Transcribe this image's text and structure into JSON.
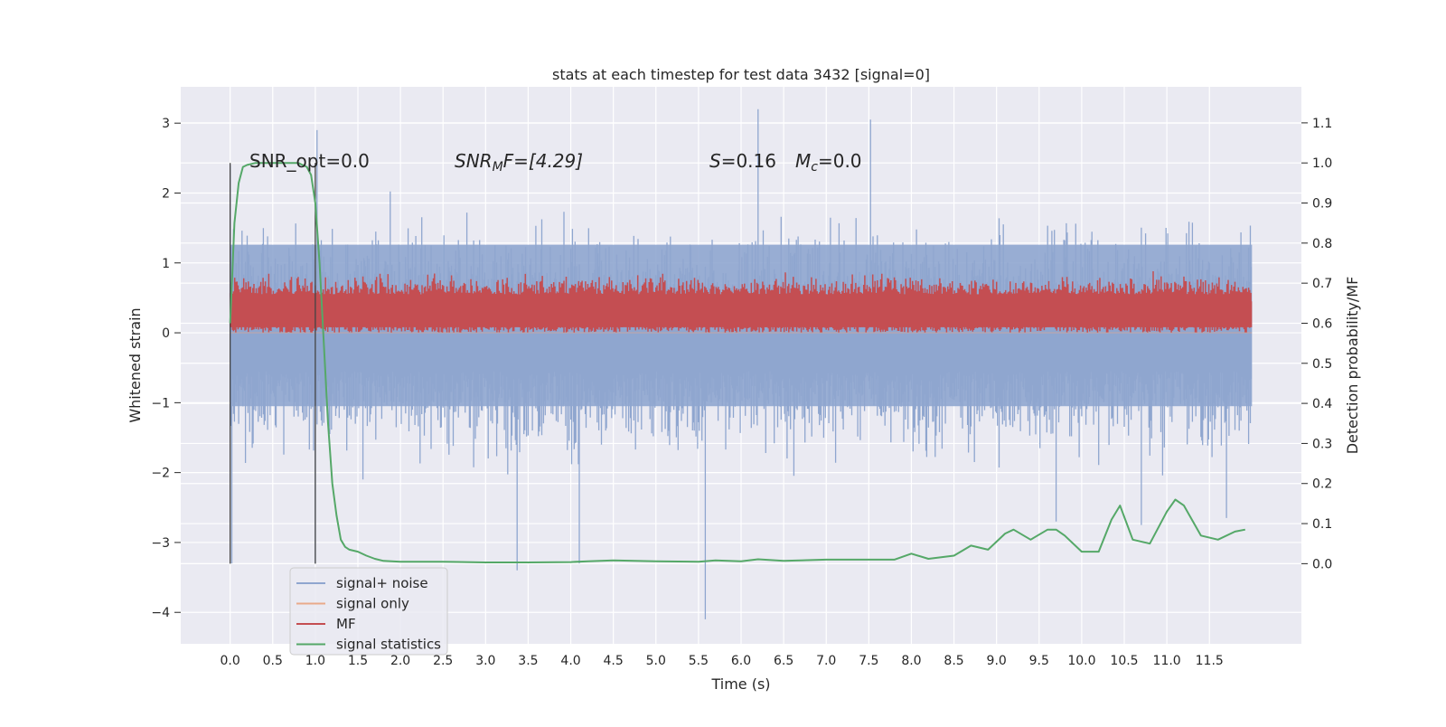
{
  "chart_data": {
    "type": "line",
    "title": "stats at each timestep for test data 3432 [signal=0]",
    "xlabel": "Time (s)",
    "ylabel": "Whitened strain",
    "y2label": "Detection probability/MF",
    "xlim": [
      -0.58,
      12.58
    ],
    "ylim": [
      -4.45,
      3.52
    ],
    "y2lim": [
      -0.2,
      1.19
    ],
    "x_ticks": [
      0.0,
      0.5,
      1.0,
      1.5,
      2.0,
      2.5,
      3.0,
      3.5,
      4.0,
      4.5,
      5.0,
      5.5,
      6.0,
      6.5,
      7.0,
      7.5,
      8.0,
      8.5,
      9.0,
      9.5,
      10.0,
      10.5,
      11.0,
      11.5
    ],
    "x_tick_labels": [
      "0.0",
      "0.5",
      "1.0",
      "1.5",
      "2.0",
      "2.5",
      "3.0",
      "3.5",
      "4.0",
      "4.5",
      "5.0",
      "5.5",
      "6.0",
      "6.5",
      "7.0",
      "7.5",
      "8.0",
      "8.5",
      "9.0",
      "9.5",
      "10.0",
      "10.5",
      "11.0",
      "11.5"
    ],
    "y_ticks": [
      3,
      2,
      1,
      0,
      -1,
      -2,
      -3,
      -4
    ],
    "y_tick_labels": [
      "3",
      "2",
      "1",
      "0",
      "−1",
      "−2",
      "−3",
      "−4"
    ],
    "y2_ticks": [
      1.1,
      1.0,
      0.9,
      0.8,
      0.7,
      0.6,
      0.5,
      0.4,
      0.3,
      0.2,
      0.1,
      0.0
    ],
    "y2_tick_labels": [
      "1.1",
      "1.0",
      "0.9",
      "0.8",
      "0.7",
      "0.6",
      "0.5",
      "0.4",
      "0.3",
      "0.2",
      "0.1",
      "0.0"
    ],
    "grid": true,
    "legend_position": "lower-left",
    "annotations": {
      "snr_opt": "SNR_opt=0.0",
      "snr_mf_sym": "SNR",
      "snr_mf_sub": "M",
      "snr_mf_rest": "F=[4.29]",
      "s_sym": "S",
      "s_rest": "=0.16",
      "mc_sym": "M",
      "mc_sub": "c",
      "mc_rest": "=0.0"
    },
    "vertical_markers": [
      0.0,
      1.0
    ],
    "series": [
      {
        "name": "signal+ noise",
        "color": "#8fa6cf",
        "axis": "left",
        "style": "noise",
        "x_range": [
          0.0,
          12.0
        ],
        "typical_range": [
          -1.5,
          1.8
        ],
        "extreme_points": [
          [
            0.0,
            2.4
          ],
          [
            0.02,
            -3.3
          ],
          [
            1.0,
            -3.3
          ],
          [
            1.02,
            2.9
          ],
          [
            3.37,
            -3.4
          ],
          [
            4.1,
            -3.3
          ],
          [
            5.58,
            -4.1
          ],
          [
            6.2,
            3.2
          ],
          [
            7.52,
            3.05
          ],
          [
            9.7,
            -2.7
          ],
          [
            10.7,
            -2.75
          ],
          [
            11.7,
            -2.65
          ]
        ]
      },
      {
        "name": "signal only",
        "color": "#e9a98a",
        "axis": "left",
        "style": "flat",
        "x": [
          0.0,
          12.0
        ],
        "y": [
          0.0,
          0.0
        ]
      },
      {
        "name": "MF",
        "color": "#c44e52",
        "axis": "left",
        "style": "band",
        "x_range": [
          0.0,
          12.0
        ],
        "band": [
          0.0,
          0.6
        ],
        "peak_max": 0.9
      },
      {
        "name": "signal statistics",
        "color": "#55a868",
        "axis": "right",
        "style": "curve",
        "x": [
          0.0,
          0.05,
          0.1,
          0.15,
          0.2,
          0.3,
          0.5,
          0.8,
          0.9,
          0.95,
          1.0,
          1.05,
          1.1,
          1.15,
          1.2,
          1.25,
          1.3,
          1.35,
          1.4,
          1.5,
          1.6,
          1.7,
          1.8,
          2.0,
          2.5,
          3.0,
          3.5,
          4.0,
          4.2,
          4.5,
          5.0,
          5.5,
          5.7,
          6.0,
          6.2,
          6.5,
          7.0,
          7.5,
          7.8,
          8.0,
          8.2,
          8.5,
          8.7,
          8.9,
          9.1,
          9.2,
          9.4,
          9.6,
          9.7,
          9.8,
          10.0,
          10.2,
          10.35,
          10.45,
          10.6,
          10.8,
          11.0,
          11.1,
          11.2,
          11.4,
          11.6,
          11.8,
          11.92
        ],
        "y": [
          0.6,
          0.85,
          0.95,
          0.99,
          0.995,
          1.0,
          1.0,
          1.0,
          0.99,
          0.97,
          0.9,
          0.75,
          0.55,
          0.35,
          0.2,
          0.12,
          0.06,
          0.042,
          0.035,
          0.03,
          0.02,
          0.012,
          0.007,
          0.005,
          0.005,
          0.003,
          0.003,
          0.004,
          0.006,
          0.008,
          0.006,
          0.005,
          0.008,
          0.006,
          0.011,
          0.007,
          0.01,
          0.01,
          0.01,
          0.025,
          0.012,
          0.02,
          0.045,
          0.035,
          0.075,
          0.085,
          0.06,
          0.085,
          0.085,
          0.07,
          0.03,
          0.03,
          0.11,
          0.145,
          0.06,
          0.05,
          0.13,
          0.16,
          0.145,
          0.07,
          0.06,
          0.08,
          0.085
        ]
      }
    ]
  }
}
